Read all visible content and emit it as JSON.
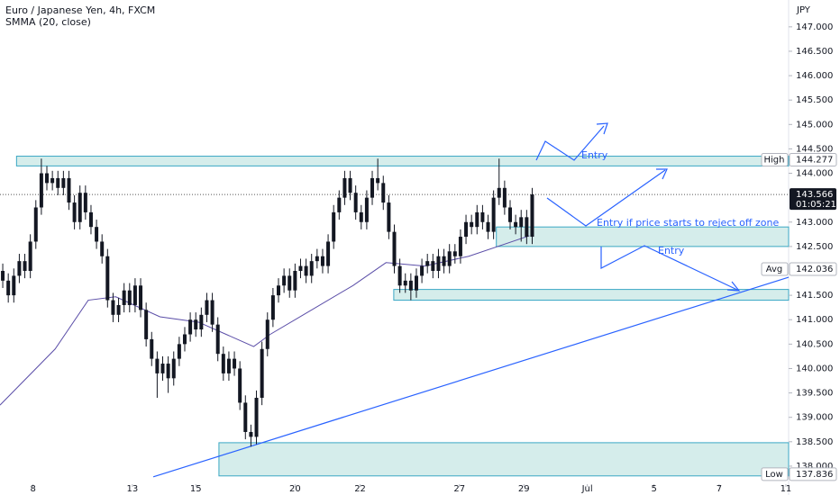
{
  "chart_data": {
    "type": "candlestick",
    "title": "Euro / Japanese Yen, 4h, FXCM",
    "subtitle": "SMMA (20, close)",
    "currency": "JPY",
    "candle_color": "#131722",
    "ohlc": [
      [
        142.0,
        142.15,
        141.65,
        141.8
      ],
      [
        141.8,
        141.95,
        141.35,
        141.5
      ],
      [
        141.5,
        142.05,
        141.35,
        141.9
      ],
      [
        141.9,
        142.35,
        141.75,
        142.2
      ],
      [
        142.2,
        142.35,
        141.85,
        142.0
      ],
      [
        142.0,
        142.75,
        141.85,
        142.6
      ],
      [
        142.6,
        143.45,
        142.45,
        143.3
      ],
      [
        143.3,
        144.3,
        143.15,
        144.0
      ],
      [
        144.0,
        144.15,
        143.65,
        143.8
      ],
      [
        143.8,
        144.05,
        143.65,
        143.9
      ],
      [
        143.9,
        144.05,
        143.55,
        143.7
      ],
      [
        143.7,
        144.05,
        143.55,
        143.9
      ],
      [
        143.9,
        144.05,
        143.25,
        143.4
      ],
      [
        143.4,
        143.55,
        142.85,
        143.0
      ],
      [
        143.0,
        143.75,
        142.85,
        143.6
      ],
      [
        143.6,
        143.75,
        143.05,
        143.2
      ],
      [
        143.2,
        143.35,
        142.75,
        142.9
      ],
      [
        142.9,
        143.05,
        142.45,
        142.6
      ],
      [
        142.6,
        142.75,
        142.15,
        142.3
      ],
      [
        142.3,
        142.45,
        141.25,
        141.4
      ],
      [
        141.4,
        141.55,
        140.95,
        141.1
      ],
      [
        141.1,
        141.45,
        140.95,
        141.3
      ],
      [
        141.3,
        141.75,
        141.15,
        141.6
      ],
      [
        141.6,
        141.75,
        141.15,
        141.3
      ],
      [
        141.3,
        141.85,
        141.15,
        141.7
      ],
      [
        141.7,
        141.85,
        141.05,
        141.2
      ],
      [
        141.2,
        141.35,
        140.45,
        140.6
      ],
      [
        140.6,
        140.75,
        140.05,
        140.2
      ],
      [
        140.2,
        140.35,
        139.4,
        139.9
      ],
      [
        139.9,
        140.25,
        139.75,
        140.1
      ],
      [
        140.1,
        140.25,
        139.5,
        139.8
      ],
      [
        139.8,
        140.35,
        139.65,
        140.2
      ],
      [
        140.2,
        140.65,
        140.05,
        140.5
      ],
      [
        140.5,
        140.85,
        140.35,
        140.7
      ],
      [
        140.7,
        141.15,
        140.55,
        141.0
      ],
      [
        141.0,
        141.15,
        140.65,
        140.8
      ],
      [
        140.8,
        141.25,
        140.65,
        141.1
      ],
      [
        141.1,
        141.55,
        140.95,
        141.4
      ],
      [
        141.4,
        141.55,
        140.75,
        140.9
      ],
      [
        140.9,
        141.05,
        140.15,
        140.3
      ],
      [
        140.3,
        140.45,
        139.75,
        139.9
      ],
      [
        139.9,
        140.35,
        139.75,
        140.2
      ],
      [
        140.2,
        140.35,
        139.85,
        140.0
      ],
      [
        140.0,
        140.15,
        139.15,
        139.3
      ],
      [
        139.3,
        139.45,
        138.55,
        138.7
      ],
      [
        138.7,
        138.85,
        138.4,
        138.6
      ],
      [
        138.6,
        139.55,
        138.45,
        139.4
      ],
      [
        139.4,
        140.55,
        139.25,
        140.4
      ],
      [
        140.4,
        141.15,
        140.25,
        141.0
      ],
      [
        141.0,
        141.65,
        140.85,
        141.5
      ],
      [
        141.5,
        141.85,
        141.35,
        141.7
      ],
      [
        141.7,
        142.05,
        141.55,
        141.9
      ],
      [
        141.9,
        142.05,
        141.45,
        141.6
      ],
      [
        141.6,
        142.15,
        141.45,
        142.0
      ],
      [
        142.0,
        142.25,
        141.85,
        142.1
      ],
      [
        142.1,
        142.25,
        141.75,
        141.9
      ],
      [
        141.9,
        142.35,
        141.75,
        142.2
      ],
      [
        142.2,
        142.45,
        142.05,
        142.3
      ],
      [
        142.3,
        142.45,
        141.95,
        142.1
      ],
      [
        142.1,
        142.75,
        141.95,
        142.6
      ],
      [
        142.6,
        143.35,
        142.45,
        143.2
      ],
      [
        143.2,
        143.65,
        143.05,
        143.5
      ],
      [
        143.5,
        144.05,
        143.35,
        143.9
      ],
      [
        143.9,
        144.05,
        143.45,
        143.6
      ],
      [
        143.6,
        143.75,
        143.05,
        143.2
      ],
      [
        143.2,
        143.35,
        142.85,
        143.0
      ],
      [
        143.0,
        143.65,
        142.85,
        143.5
      ],
      [
        143.5,
        144.05,
        143.35,
        143.9
      ],
      [
        143.9,
        144.3,
        143.65,
        143.8
      ],
      [
        143.8,
        143.95,
        143.25,
        143.4
      ],
      [
        143.4,
        143.55,
        142.65,
        142.8
      ],
      [
        142.8,
        142.95,
        141.95,
        142.1
      ],
      [
        142.1,
        142.25,
        141.55,
        141.7
      ],
      [
        141.7,
        141.95,
        141.55,
        141.8
      ],
      [
        141.8,
        141.95,
        141.4,
        141.6
      ],
      [
        141.6,
        142.05,
        141.45,
        141.9
      ],
      [
        141.9,
        142.25,
        141.75,
        142.1
      ],
      [
        142.1,
        142.35,
        141.95,
        142.2
      ],
      [
        142.2,
        142.35,
        141.85,
        142.0
      ],
      [
        142.0,
        142.45,
        141.85,
        142.3
      ],
      [
        142.3,
        142.45,
        141.95,
        142.1
      ],
      [
        142.1,
        142.55,
        141.95,
        142.4
      ],
      [
        142.4,
        142.55,
        142.15,
        142.3
      ],
      [
        142.3,
        142.85,
        142.15,
        142.7
      ],
      [
        142.7,
        143.15,
        142.55,
        143.0
      ],
      [
        143.0,
        143.15,
        142.75,
        142.9
      ],
      [
        142.9,
        143.35,
        142.75,
        143.2
      ],
      [
        143.2,
        143.35,
        142.85,
        143.0
      ],
      [
        143.0,
        143.15,
        142.65,
        142.8
      ],
      [
        142.8,
        143.65,
        142.65,
        143.5
      ],
      [
        143.5,
        144.3,
        143.35,
        143.7
      ],
      [
        143.7,
        143.85,
        143.15,
        143.3
      ],
      [
        143.3,
        143.45,
        142.85,
        143.0
      ],
      [
        143.0,
        143.15,
        142.75,
        142.9
      ],
      [
        142.9,
        143.25,
        142.6,
        143.1
      ],
      [
        143.1,
        143.25,
        142.55,
        142.7
      ],
      [
        142.7,
        143.7,
        142.55,
        143.566
      ]
    ],
    "smma": {
      "color": "#5b4ea8",
      "x": [
        0,
        10,
        16,
        21,
        29,
        36,
        41,
        46,
        49,
        55,
        64,
        70,
        77,
        85,
        96
      ],
      "values": [
        139.25,
        140.4,
        141.4,
        141.47,
        141.06,
        140.95,
        140.7,
        140.45,
        140.7,
        141.1,
        141.7,
        142.17,
        142.1,
        142.3,
        142.72
      ]
    },
    "zones": [
      {
        "x": [
          3,
          143
        ],
        "y": [
          144.15,
          144.35
        ]
      },
      {
        "x": [
          90,
          143
        ],
        "y": [
          142.5,
          142.9
        ]
      },
      {
        "x": [
          71.4,
          143
        ],
        "y": [
          141.4,
          141.62
        ]
      },
      {
        "x": [
          39.7,
          143
        ],
        "y": [
          137.8,
          138.48
        ]
      }
    ],
    "zone_color": "#b2dfdb",
    "zone_border": "#3aa7c4",
    "trendline": {
      "x": [
        27.8,
        143
      ],
      "y": [
        137.78,
        141.87
      ],
      "color": "#2962ff"
    },
    "xlim": [
      0,
      143
    ],
    "ylim": [
      137.63,
      147.55
    ],
    "xticks": [
      {
        "value": 6,
        "label": "8"
      },
      {
        "value": 24,
        "label": "13"
      },
      {
        "value": 35.5,
        "label": "15"
      },
      {
        "value": 53.5,
        "label": "20"
      },
      {
        "value": 65.3,
        "label": "22"
      },
      {
        "value": 83.3,
        "label": "27"
      },
      {
        "value": 95,
        "label": "29"
      },
      {
        "value": 106.5,
        "label": "Jul"
      },
      {
        "value": 118.6,
        "label": "5"
      },
      {
        "value": 130.4,
        "label": "7"
      },
      {
        "value": 142.5,
        "label": "11"
      }
    ],
    "yticks": [
      {
        "value": 147,
        "label": "147.000"
      },
      {
        "value": 146.5,
        "label": "146.500"
      },
      {
        "value": 146,
        "label": "146.000"
      },
      {
        "value": 145.5,
        "label": "145.500"
      },
      {
        "value": 145,
        "label": "145.000"
      },
      {
        "value": 144.5,
        "label": "144.500"
      },
      {
        "value": 144,
        "label": "144.000"
      },
      {
        "value": 143,
        "label": "143.000"
      },
      {
        "value": 142.5,
        "label": "142.500"
      },
      {
        "value": 141.5,
        "label": "141.500"
      },
      {
        "value": 141,
        "label": "141.000"
      },
      {
        "value": 140.5,
        "label": "140.500"
      },
      {
        "value": 140,
        "label": "140.000"
      },
      {
        "value": 139.5,
        "label": "139.500"
      },
      {
        "value": 139,
        "label": "139.000"
      },
      {
        "value": 138.5,
        "label": "138.500"
      },
      {
        "value": 138,
        "label": "138.000"
      }
    ],
    "markers": {
      "high": {
        "label": "High",
        "value": 144.277
      },
      "last": {
        "value": 143.566,
        "countdown": "01:05:21"
      },
      "avg": {
        "label": "Avg",
        "value": 142.036
      },
      "low": {
        "label": "Low",
        "value": 137.836
      }
    },
    "annotations": [
      "Entry",
      "Entry if price starts to reject off zone",
      "Entry"
    ]
  }
}
